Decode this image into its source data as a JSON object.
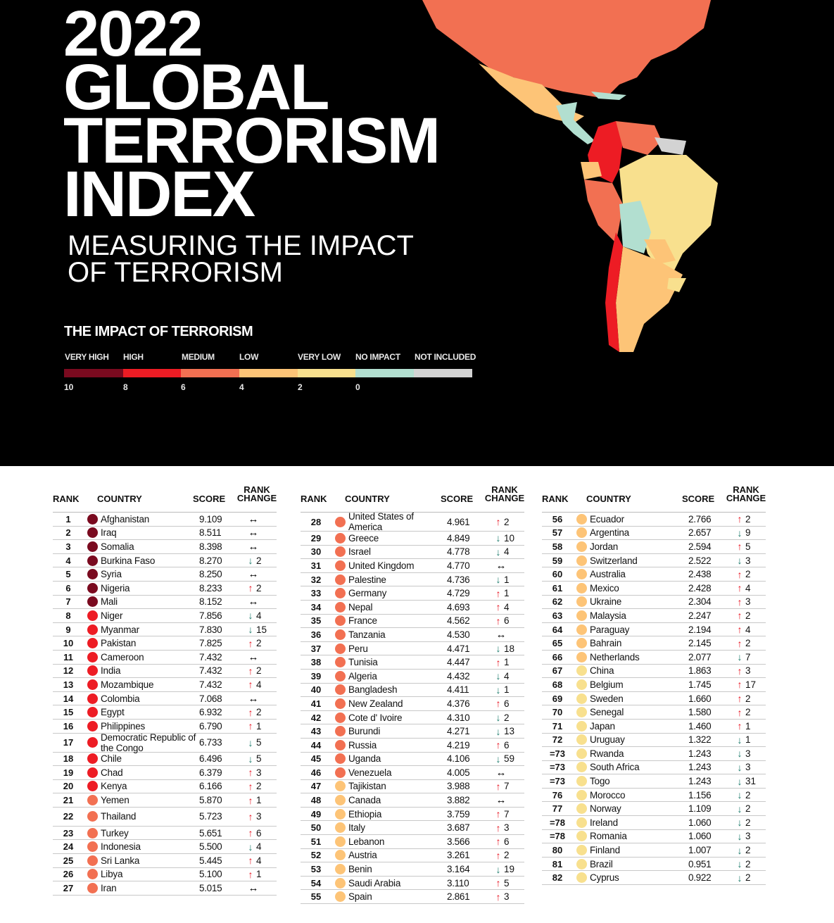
{
  "title": {
    "year": "2022",
    "line1": "GLOBAL",
    "line2": "TERRORISM",
    "line3": "INDEX",
    "subtitle1": "MEASURING THE IMPACT",
    "subtitle2": "OF TERRORISM"
  },
  "legend": {
    "title": "THE IMPACT OF TERRORISM",
    "categories": [
      {
        "label": "VERY HIGH",
        "color": "#7a0a1f",
        "tick": "10"
      },
      {
        "label": "HIGH",
        "color": "#ed1c24",
        "tick": "8"
      },
      {
        "label": "MEDIUM",
        "color": "#f27052",
        "tick": "6"
      },
      {
        "label": "LOW",
        "color": "#fdc477",
        "tick": "4"
      },
      {
        "label": "VERY LOW",
        "color": "#f8e08e",
        "tick": "2"
      },
      {
        "label": "NO IMPACT",
        "color": "#b2dfd0",
        "tick": "0"
      },
      {
        "label": "NOT INCLUDED",
        "color": "#d3d3d3",
        "tick": ""
      }
    ]
  },
  "table_headers": {
    "rank": "RANK",
    "country": "COUNTRY",
    "score": "SCORE",
    "change1": "RANK",
    "change2": "CHANGE"
  },
  "columns": [
    [
      [
        "1",
        "Afghanistan",
        "9.109",
        "same",
        "",
        0
      ],
      [
        "2",
        "Iraq",
        "8.511",
        "same",
        "",
        0
      ],
      [
        "3",
        "Somalia",
        "8.398",
        "same",
        "",
        0
      ],
      [
        "4",
        "Burkina Faso",
        "8.270",
        "down",
        "2",
        0
      ],
      [
        "5",
        "Syria",
        "8.250",
        "same",
        "",
        0
      ],
      [
        "6",
        "Nigeria",
        "8.233",
        "up",
        "2",
        0
      ],
      [
        "7",
        "Mali",
        "8.152",
        "same",
        "",
        0
      ],
      [
        "8",
        "Niger",
        "7.856",
        "down",
        "4",
        1
      ],
      [
        "9",
        "Myanmar",
        "7.830",
        "down",
        "15",
        1
      ],
      [
        "10",
        "Pakistan",
        "7.825",
        "up",
        "2",
        1
      ],
      [
        "11",
        "Cameroon",
        "7.432",
        "same",
        "",
        1
      ],
      [
        "12",
        "India",
        "7.432",
        "up",
        "2",
        1
      ],
      [
        "13",
        "Mozambique",
        "7.432",
        "up",
        "4",
        1
      ],
      [
        "14",
        "Colombia",
        "7.068",
        "same",
        "",
        1
      ],
      [
        "15",
        "Egypt",
        "6.932",
        "up",
        "2",
        1
      ],
      [
        "16",
        "Philippines",
        "6.790",
        "up",
        "1",
        1
      ],
      [
        "17",
        "Democratic Republic of the Congo",
        "6.733",
        "down",
        "5",
        1
      ],
      [
        "18",
        "Chile",
        "6.496",
        "down",
        "5",
        1
      ],
      [
        "19",
        "Chad",
        "6.379",
        "up",
        "3",
        1
      ],
      [
        "20",
        "Kenya",
        "6.166",
        "up",
        "2",
        1
      ],
      [
        "21",
        "Yemen",
        "5.870",
        "up",
        "1",
        2
      ],
      [
        "22",
        "Thailand",
        "5.723",
        "up",
        "3",
        2
      ],
      [
        "23",
        "Turkey",
        "5.651",
        "up",
        "6",
        2
      ],
      [
        "24",
        "Indonesia",
        "5.500",
        "down",
        "4",
        2
      ],
      [
        "25",
        "Sri Lanka",
        "5.445",
        "up",
        "4",
        2
      ],
      [
        "26",
        "Libya",
        "5.100",
        "up",
        "1",
        2
      ],
      [
        "27",
        "Iran",
        "5.015",
        "same",
        "",
        2
      ]
    ],
    [
      [
        "28",
        "United States of America",
        "4.961",
        "up",
        "2",
        2
      ],
      [
        "29",
        "Greece",
        "4.849",
        "down",
        "10",
        2
      ],
      [
        "30",
        "Israel",
        "4.778",
        "down",
        "4",
        2
      ],
      [
        "31",
        "United Kingdom",
        "4.770",
        "same",
        "",
        2
      ],
      [
        "32",
        "Palestine",
        "4.736",
        "down",
        "1",
        2
      ],
      [
        "33",
        "Germany",
        "4.729",
        "up",
        "1",
        2
      ],
      [
        "34",
        "Nepal",
        "4.693",
        "up",
        "4",
        2
      ],
      [
        "35",
        "France",
        "4.562",
        "up",
        "6",
        2
      ],
      [
        "36",
        "Tanzania",
        "4.530",
        "same",
        "",
        2
      ],
      [
        "37",
        "Peru",
        "4.471",
        "down",
        "18",
        2
      ],
      [
        "38",
        "Tunisia",
        "4.447",
        "up",
        "1",
        2
      ],
      [
        "39",
        "Algeria",
        "4.432",
        "down",
        "4",
        2
      ],
      [
        "40",
        "Bangladesh",
        "4.411",
        "down",
        "1",
        2
      ],
      [
        "41",
        "New Zealand",
        "4.376",
        "up",
        "6",
        2
      ],
      [
        "42",
        "Cote d' Ivoire",
        "4.310",
        "down",
        "2",
        2
      ],
      [
        "43",
        "Burundi",
        "4.271",
        "down",
        "13",
        2
      ],
      [
        "44",
        "Russia",
        "4.219",
        "up",
        "6",
        2
      ],
      [
        "45",
        "Uganda",
        "4.106",
        "down",
        "59",
        2
      ],
      [
        "46",
        "Venezuela",
        "4.005",
        "same",
        "",
        2
      ],
      [
        "47",
        "Tajikistan",
        "3.988",
        "up",
        "7",
        3
      ],
      [
        "48",
        "Canada",
        "3.882",
        "same",
        "",
        3
      ],
      [
        "49",
        "Ethiopia",
        "3.759",
        "up",
        "7",
        3
      ],
      [
        "50",
        "Italy",
        "3.687",
        "up",
        "3",
        3
      ],
      [
        "51",
        "Lebanon",
        "3.566",
        "up",
        "6",
        3
      ],
      [
        "52",
        "Austria",
        "3.261",
        "up",
        "2",
        3
      ],
      [
        "53",
        "Benin",
        "3.164",
        "down",
        "19",
        3
      ],
      [
        "54",
        "Saudi Arabia",
        "3.110",
        "up",
        "5",
        3
      ],
      [
        "55",
        "Spain",
        "2.861",
        "up",
        "3",
        3
      ]
    ],
    [
      [
        "56",
        "Ecuador",
        "2.766",
        "up",
        "2",
        3
      ],
      [
        "57",
        "Argentina",
        "2.657",
        "down",
        "9",
        3
      ],
      [
        "58",
        "Jordan",
        "2.594",
        "up",
        "5",
        3
      ],
      [
        "59",
        "Switzerland",
        "2.522",
        "down",
        "3",
        3
      ],
      [
        "60",
        "Australia",
        "2.438",
        "up",
        "2",
        3
      ],
      [
        "61",
        "Mexico",
        "2.428",
        "up",
        "4",
        3
      ],
      [
        "62",
        "Ukraine",
        "2.304",
        "up",
        "3",
        3
      ],
      [
        "63",
        "Malaysia",
        "2.247",
        "up",
        "2",
        3
      ],
      [
        "64",
        "Paraguay",
        "2.194",
        "up",
        "4",
        3
      ],
      [
        "65",
        "Bahrain",
        "2.145",
        "up",
        "2",
        3
      ],
      [
        "66",
        "Netherlands",
        "2.077",
        "down",
        "7",
        3
      ],
      [
        "67",
        "China",
        "1.863",
        "up",
        "3",
        4
      ],
      [
        "68",
        "Belgium",
        "1.745",
        "up",
        "17",
        4
      ],
      [
        "69",
        "Sweden",
        "1.660",
        "up",
        "2",
        4
      ],
      [
        "70",
        "Senegal",
        "1.580",
        "up",
        "2",
        4
      ],
      [
        "71",
        "Japan",
        "1.460",
        "up",
        "1",
        4
      ],
      [
        "72",
        "Uruguay",
        "1.322",
        "down",
        "1",
        4
      ],
      [
        "=73",
        "Rwanda",
        "1.243",
        "down",
        "3",
        4
      ],
      [
        "=73",
        "South Africa",
        "1.243",
        "down",
        "3",
        4
      ],
      [
        "=73",
        "Togo",
        "1.243",
        "down",
        "31",
        4
      ],
      [
        "76",
        "Morocco",
        "1.156",
        "down",
        "2",
        4
      ],
      [
        "77",
        "Norway",
        "1.109",
        "down",
        "2",
        4
      ],
      [
        "=78",
        "Ireland",
        "1.060",
        "down",
        "2",
        4
      ],
      [
        "=78",
        "Romania",
        "1.060",
        "down",
        "3",
        4
      ],
      [
        "80",
        "Finland",
        "1.007",
        "down",
        "2",
        4
      ],
      [
        "81",
        "Brazil",
        "0.951",
        "down",
        "2",
        4
      ],
      [
        "82",
        "Cyprus",
        "0.922",
        "down",
        "2",
        4
      ]
    ]
  ]
}
